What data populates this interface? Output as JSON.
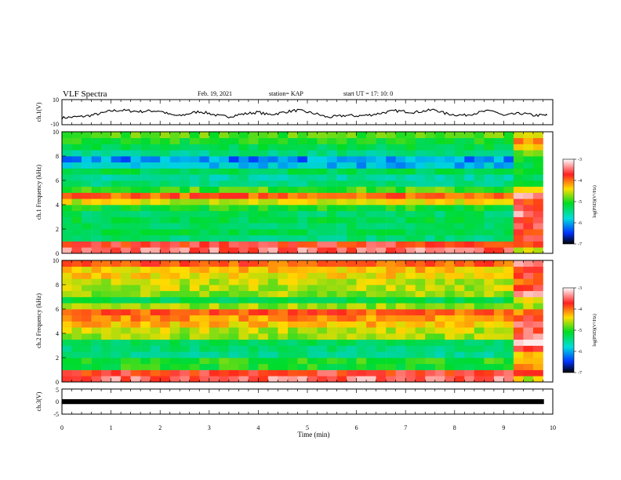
{
  "header": {
    "title": "VLF Spectra",
    "date": "Feb. 19, 2021",
    "station": "station= KAP",
    "start": "start  UT  =   17: 10: 0"
  },
  "chart_data": [
    {
      "type": "line",
      "panel": "ch1-waveform",
      "ylabel": "ch.1(V)",
      "yticks": [
        "10",
        "-10"
      ],
      "ylim": [
        -10,
        10
      ],
      "xlim": [
        0,
        10
      ],
      "line_color": "#000000",
      "x": [
        0,
        0.2,
        0.4,
        0.6,
        0.8,
        1.0,
        1.2,
        1.4,
        1.6,
        1.8,
        2.0,
        2.2,
        2.4,
        2.6,
        2.8,
        3.0,
        3.2,
        3.4,
        3.6,
        3.8,
        4.0,
        4.2,
        4.4,
        4.6,
        4.8,
        5.0,
        5.2,
        5.4,
        5.6,
        5.8,
        6.0,
        6.2,
        6.4,
        6.6,
        6.8,
        7.0,
        7.2,
        7.4,
        7.6,
        7.8,
        8.0,
        8.2,
        8.4,
        8.6,
        8.8,
        9.0,
        9.2,
        9.4,
        9.6,
        9.8
      ],
      "values": [
        -4.5,
        -4,
        -3.5,
        -2.5,
        -1,
        1,
        1.5,
        1,
        0.5,
        1,
        1,
        -2,
        -3,
        -1,
        0.5,
        -1,
        -3,
        -3.5,
        -2,
        -1,
        0,
        -2,
        -1,
        0.5,
        1.5,
        0,
        -1.5,
        -4,
        -3.5,
        -2.5,
        -3,
        -2.5,
        -1.5,
        0,
        1,
        0.5,
        0,
        1,
        2,
        -1,
        -2,
        -2.5,
        -1,
        0.5,
        1,
        -3,
        -1.5,
        -1,
        -2.5,
        -2.5
      ]
    },
    {
      "type": "heatmap",
      "panel": "ch1-spectrogram",
      "ylabel": "ch.1 Frequency (kHz)",
      "yticks": [
        "0",
        "2",
        "4",
        "6",
        "8",
        "10"
      ],
      "ylim": [
        0,
        10
      ],
      "xlim": [
        0,
        9.8
      ],
      "colorbar": {
        "range": [
          -7,
          -3
        ],
        "ticks": [
          "-3",
          "-4",
          "-5",
          "-6",
          "-7"
        ],
        "label": "log(PSD)(V²/Hz)"
      },
      "freq_rows_khz": [
        0.25,
        0.75,
        1.25,
        1.75,
        2.25,
        2.75,
        3.25,
        3.75,
        4.25,
        4.75,
        5.25,
        5.75,
        6.25,
        6.75,
        7.25,
        7.75,
        8.25,
        8.75,
        9.25,
        9.75
      ],
      "levels_before_9_1min": [
        -3.4,
        -3.6,
        -5.4,
        -5.2,
        -5.3,
        -5.2,
        -5.3,
        -5.0,
        -4.4,
        -3.8,
        -4.8,
        -5.4,
        -5.6,
        -5.2,
        -6.0,
        -6.2,
        -5.5,
        -5.2,
        -5.0,
        -4.8
      ],
      "levels_after_9_1min": [
        -4.4,
        -3.8,
        -3.6,
        -3.7,
        -3.6,
        -3.5,
        -3.4,
        -3.5,
        -3.7,
        -3.4,
        -4.4,
        -5.2,
        -5.3,
        -4.8,
        -5.2,
        -5.0,
        -4.6,
        -4.4,
        -3.9,
        -4.6
      ]
    },
    {
      "type": "heatmap",
      "panel": "ch2-spectrogram",
      "ylabel": "ch.2 Frequency (kHz)",
      "yticks": [
        "0",
        "2",
        "4",
        "6",
        "8",
        "10"
      ],
      "ylim": [
        0,
        10
      ],
      "xlim": [
        0,
        9.8
      ],
      "colorbar": {
        "range": [
          -7,
          -3
        ],
        "ticks": [
          "-3",
          "-4",
          "-5",
          "-6",
          "-7"
        ],
        "label": "log(PSD)(V²/Hz)"
      },
      "freq_rows_khz": [
        0.25,
        0.75,
        1.25,
        1.75,
        2.25,
        2.75,
        3.25,
        3.75,
        4.25,
        4.75,
        5.25,
        5.75,
        6.25,
        6.75,
        7.25,
        7.75,
        8.25,
        8.75,
        9.25,
        9.75
      ],
      "levels_before_9_1min": [
        -3.4,
        -3.6,
        -5.0,
        -4.9,
        -5.5,
        -5.4,
        -5.3,
        -4.6,
        -4.5,
        -4.2,
        -4.0,
        -3.8,
        -4.6,
        -5.2,
        -4.6,
        -4.5,
        -4.5,
        -4.3,
        -4.2,
        -3.8
      ],
      "levels_after_9_1min": [
        -4.4,
        -3.8,
        -4.0,
        -4.4,
        -4.2,
        -3.4,
        -3.2,
        -3.3,
        -3.5,
        -3.5,
        -3.6,
        -4.0,
        -4.6,
        -4.5,
        -3.4,
        -3.4,
        -4.0,
        -3.6,
        -3.6,
        -3.4
      ]
    },
    {
      "type": "line",
      "panel": "ch3-waveform",
      "ylabel": "ch.3(V)",
      "yticks": [
        "5",
        "0",
        "-5"
      ],
      "ylim": [
        -5,
        5
      ],
      "xlim": [
        0,
        10
      ],
      "band_range_v": [
        -1,
        0
      ],
      "line_color": "#000000",
      "xlabel": "Time  (min)",
      "xticks": [
        "0",
        "1",
        "2",
        "3",
        "4",
        "5",
        "6",
        "7",
        "8",
        "9",
        "10"
      ]
    }
  ]
}
